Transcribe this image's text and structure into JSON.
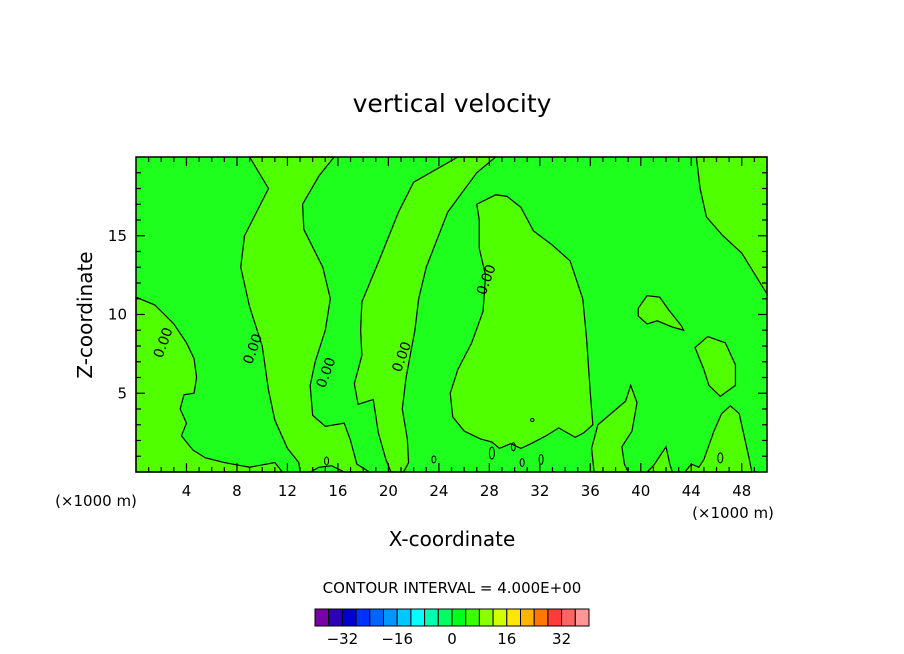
{
  "chart_data": {
    "type": "heatmap",
    "title": "vertical velocity",
    "xlabel": "X-coordinate",
    "ylabel": "Z-coordinate",
    "x_unit_label_left": "(×1000 m)",
    "x_unit_label_right": "(×1000 m)",
    "xlim": [
      0,
      50
    ],
    "ylim": [
      0,
      20
    ],
    "x_ticks": [
      4,
      8,
      12,
      16,
      20,
      24,
      28,
      32,
      36,
      40,
      44,
      48
    ],
    "y_ticks": [
      5,
      10,
      15
    ],
    "contour_label": "0.00",
    "contour_interval_text": "CONTOUR INTERVAL = 4.000E+00",
    "colorbar": {
      "tick_labels": [
        "−32",
        "−16",
        "0",
        "16",
        "32"
      ],
      "tick_values": [
        -32,
        -16,
        0,
        16,
        32
      ],
      "levels": [
        -36,
        -32,
        -28,
        -24,
        -20,
        -16,
        -12,
        -8,
        -4,
        0,
        4,
        8,
        12,
        16,
        20,
        24,
        28,
        32,
        36
      ],
      "colors": [
        "#7a00a8",
        "#2d00b8",
        "#0000cc",
        "#0032ff",
        "#0064ff",
        "#0096ff",
        "#00c8ff",
        "#00ffff",
        "#00ffb0",
        "#00ff64",
        "#00ff1a",
        "#3cff00",
        "#8cff00",
        "#d2ff00",
        "#ffe600",
        "#ffb400",
        "#ff7800",
        "#ff3c3c",
        "#ff6464",
        "#ff9696"
      ]
    },
    "fills": {
      "positive": "#1eff1e",
      "negative": "#50ff00"
    },
    "contours": [
      {
        "label": "0.00",
        "label_at": [
          2.2,
          8.2
        ]
      },
      {
        "label": "0.00",
        "label_at": [
          9.3,
          7.8
        ]
      },
      {
        "label": "0.00",
        "label_at": [
          15.1,
          6.3
        ]
      },
      {
        "label": "0.00",
        "label_at": [
          21.1,
          7.3
        ]
      },
      {
        "label": "0.00",
        "label_at": [
          27.8,
          12.2
        ]
      }
    ]
  }
}
